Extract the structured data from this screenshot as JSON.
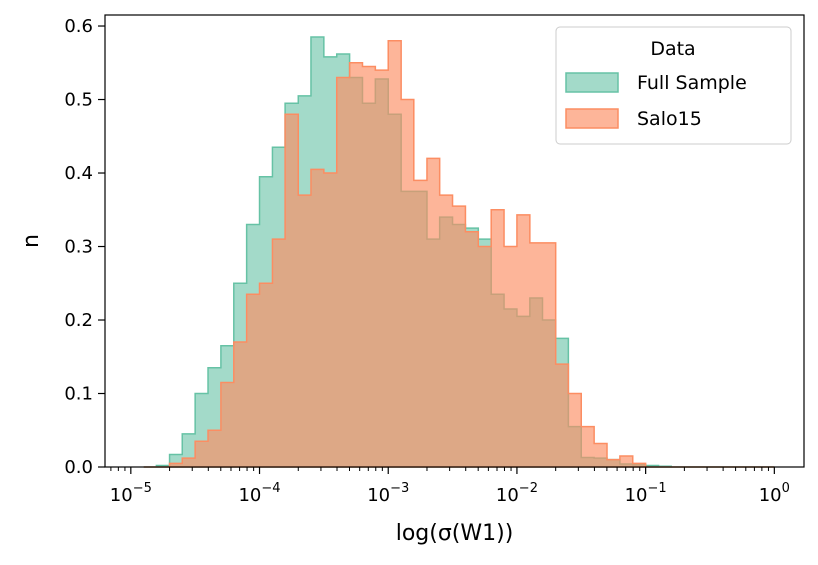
{
  "chart_data": {
    "type": "area",
    "histogram_style": "step",
    "x_scale": "log",
    "xlabel": "log(σ(W1))",
    "ylabel": "n",
    "xlim": [
      6.3e-06,
      1.7
    ],
    "ylim": [
      0,
      0.615
    ],
    "x_major_ticks": [
      {
        "exp": "-5",
        "value": 1e-05
      },
      {
        "exp": "-4",
        "value": 0.0001
      },
      {
        "exp": "-3",
        "value": 0.001
      },
      {
        "exp": "-2",
        "value": 0.01
      },
      {
        "exp": "-1",
        "value": 0.1
      },
      {
        "exp": "",
        "value": 1,
        "label": "10",
        "sup": "0"
      }
    ],
    "y_ticks": [
      "0.0",
      "0.1",
      "0.2",
      "0.3",
      "0.4",
      "0.5",
      "0.6"
    ],
    "y_tick_values": [
      0.0,
      0.1,
      0.2,
      0.3,
      0.4,
      0.5,
      0.6
    ],
    "grid": false,
    "legend": {
      "title": "Data",
      "placement": "top-right"
    },
    "bin_edges": [
      1.26e-05,
      1.58e-05,
      2e-05,
      2.51e-05,
      3.16e-05,
      3.98e-05,
      5.01e-05,
      6.31e-05,
      7.94e-05,
      0.0001,
      0.000126,
      0.000158,
      0.0002,
      0.000251,
      0.000316,
      0.000398,
      0.000501,
      0.000631,
      0.000794,
      0.001,
      0.00126,
      0.00158,
      0.002,
      0.00251,
      0.00316,
      0.00398,
      0.00501,
      0.00631,
      0.00794,
      0.01,
      0.0126,
      0.0158,
      0.02,
      0.0251,
      0.0316,
      0.0398,
      0.0501,
      0.0631,
      0.0794,
      0.1,
      0.126,
      0.158,
      0.2,
      0.251,
      0.316,
      0.398,
      0.501,
      0.631,
      0.794,
      1.0
    ],
    "series": [
      {
        "name": "Full Sample",
        "color": "#66c2a5",
        "fill": "rgba(102,194,165,0.6)",
        "values": [
          0.0,
          0.002,
          0.017,
          0.045,
          0.1,
          0.135,
          0.165,
          0.25,
          0.33,
          0.395,
          0.435,
          0.495,
          0.505,
          0.585,
          0.558,
          0.562,
          0.53,
          0.495,
          0.528,
          0.48,
          0.375,
          0.375,
          0.31,
          0.34,
          0.33,
          0.325,
          0.31,
          0.235,
          0.215,
          0.205,
          0.23,
          0.2,
          0.175,
          0.055,
          0.013,
          0.012,
          0.01,
          0.004,
          0.003,
          0.002,
          0.001,
          0.0,
          0.0,
          0.0,
          0.0,
          0.0,
          0.0,
          0.0,
          0.0
        ]
      },
      {
        "name": "Salo15",
        "color": "#fc8d62",
        "fill": "rgba(252,141,98,0.65)",
        "values": [
          0.0,
          0.0,
          0.005,
          0.012,
          0.035,
          0.05,
          0.115,
          0.17,
          0.235,
          0.25,
          0.31,
          0.48,
          0.37,
          0.405,
          0.4,
          0.53,
          0.55,
          0.545,
          0.54,
          0.58,
          0.5,
          0.39,
          0.42,
          0.37,
          0.355,
          0.32,
          0.3,
          0.35,
          0.3,
          0.343,
          0.305,
          0.305,
          0.14,
          0.1,
          0.055,
          0.032,
          0.01,
          0.015,
          0.005,
          0.0,
          0.0,
          0.0,
          0.0,
          0.0,
          0.0,
          0.0,
          0.0,
          0.0,
          0.0
        ]
      }
    ]
  }
}
